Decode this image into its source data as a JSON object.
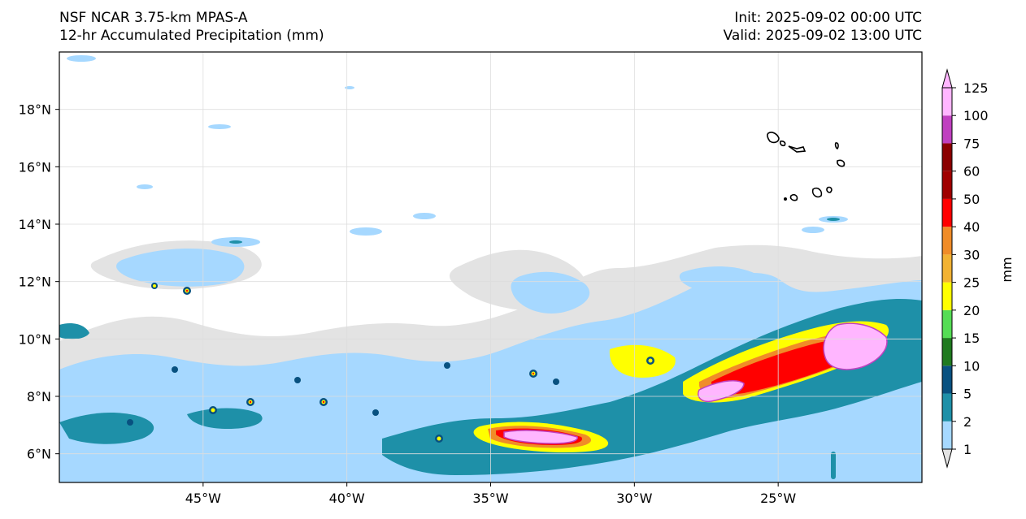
{
  "header": {
    "model": "NSF NCAR 3.75-km MPAS-A",
    "field": "12-hr Accumulated Precipitation (mm)",
    "init": "Init: 2025-09-02 00:00 UTC",
    "valid": "Valid: 2025-09-02 13:00 UTC"
  },
  "map": {
    "lon_range": [
      -50,
      -20
    ],
    "lat_range": [
      5,
      20
    ],
    "lon_ticks": [
      {
        "value": -45,
        "label": "45°W"
      },
      {
        "value": -40,
        "label": "40°W"
      },
      {
        "value": -35,
        "label": "35°W"
      },
      {
        "value": -30,
        "label": "30°W"
      },
      {
        "value": -25,
        "label": "25°W"
      }
    ],
    "lat_ticks": [
      {
        "value": 6,
        "label": "6°N"
      },
      {
        "value": 8,
        "label": "8°N"
      },
      {
        "value": 10,
        "label": "10°N"
      },
      {
        "value": 12,
        "label": "12°N"
      },
      {
        "value": 14,
        "label": "14°N"
      },
      {
        "value": 16,
        "label": "16°N"
      },
      {
        "value": 18,
        "label": "18°N"
      }
    ],
    "gridlines": true,
    "land_feature": "Cabo Verde islands outline (black)"
  },
  "colorbar": {
    "unit_label": "mm",
    "levels": [
      1,
      2,
      5,
      10,
      15,
      20,
      25,
      30,
      40,
      50,
      60,
      75,
      100,
      125
    ],
    "level_labels": [
      "1",
      "2",
      "5",
      "10",
      "15",
      "20",
      "25",
      "30",
      "40",
      "50",
      "60",
      "75",
      "100",
      "125"
    ],
    "colors": [
      "#e3e3e3",
      "#a6d8ff",
      "#1e90a8",
      "#085180",
      "#1f7a1f",
      "#55dd55",
      "#ffff00",
      "#f2b233",
      "#f08c28",
      "#ff0000",
      "#a00000",
      "#8b0000",
      "#c040c0",
      "#ffb6ff"
    ],
    "extend": "both"
  }
}
